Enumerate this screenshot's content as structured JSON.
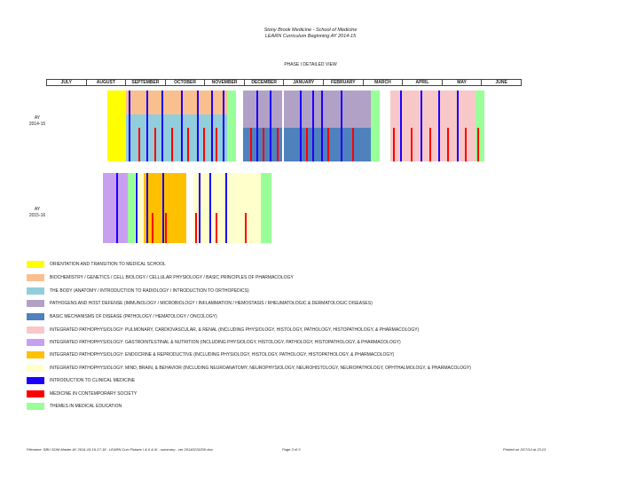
{
  "header": {
    "line1": "Stony Brook Medicine - School of Medicine",
    "line2": "LEARN Curriculum Beginning AY 2014-15",
    "view": "PHASE I DETAILED VIEW"
  },
  "months": [
    "JULY",
    "AUGUST",
    "SEPTEMBER",
    "OCTOBER",
    "NOVEMBER",
    "DECEMBER",
    "JANUARY",
    "FEBRUARY",
    "MARCH",
    "APRIL",
    "MAY",
    "JUNE"
  ],
  "rows": [
    {
      "label_line1": "AY",
      "label_line2": "2014-15"
    },
    {
      "label_line1": "AY",
      "label_line2": "2015-16"
    }
  ],
  "legend": [
    {
      "key": "orientation",
      "color": "#ffff00",
      "label": "ORIENTATION AND TRANSITION TO MEDICAL SCHOOL"
    },
    {
      "key": "biochem",
      "color": "#f9bf8f",
      "label": "BIOCHEMISTRY / GENETICS / CELL BIOLOGY / CELLULAR PHYSIOLOGY / BASIC PRINCIPLES OF PHARMACOLOGY"
    },
    {
      "key": "body",
      "color": "#92cddc",
      "label": "THE BODY (ANATOMY / INTRODUCTION TO RADIOLOGY / INTRODUCTION TO ORTHOPEDICS)"
    },
    {
      "key": "pathogens",
      "color": "#b2a1c7",
      "label": "PATHOGENS AND HOST DEFENSE (IMMUNOLOGY / MICROBIOLOGY / INFLAMMATION / HEMOSTASIS / RHEUMATOLOGIC & DERMATOLOGIC DISEASES)"
    },
    {
      "key": "mechanisms",
      "color": "#4f81bd",
      "label": "BASIC MECHANISMS OF DISEASE (PATHOLOGY / HEMATOLOGY / ONCOLOGY)"
    },
    {
      "key": "pulm",
      "color": "#f8c8c8",
      "label": "INTEGRATED PATHOPHYSIOLOGY: PULMONARY, CARDIOVASCULAR, & RENAL (INCLUDING PHYSIOLOGY, HISTOLOGY, PATHOLOGY, HISTOPATHOLOGY, & PHARMACOLOGY)"
    },
    {
      "key": "gi",
      "color": "#c8a0f0",
      "label": "INTEGRATED PATHOPHYSIOLOGY: GASTROINTESTINAL & NUTRITION (INCLUDING PHYSIOLOGY, HISTOLOGY, PATHOLOGY, HISTOPATHOLOGY, & PHARMACOLOGY)"
    },
    {
      "key": "endo",
      "color": "#ffc000",
      "label": "INTEGRATED PATHOPHYSIOLOGY: ENDOCRINE & REPRODUCTIVE (INCLUDING PHYSIOLOGY, HISTOLOGY, PATHOLOGY, HISTOPATHOLOGY, & PHARMACOLOGY)"
    },
    {
      "key": "mind",
      "color": "#ffffcc",
      "label": "INTEGRATED PATHOPHYSIOLOGY: MIND, BRAIN, & BEHAVIOR (INCLUDING NEUROANATOMY, NEUROPHYSIOLOGY, NEUROHISTOLOGY, NEUROPATHOLOGY, OPHTHALMOLOGY, & PHARMACOLOGY)"
    },
    {
      "key": "clinical",
      "color": "#1a00ff",
      "label": "INTRODUCTION TO CLINICAL MEDICINE"
    },
    {
      "key": "society",
      "color": "#ff0000",
      "label": "MEDICINE IN CONTEMPORARY SOCIETY"
    },
    {
      "key": "themes",
      "color": "#99ff99",
      "label": "THEMES IN MEDICAL EDUCATION"
    }
  ],
  "footer": {
    "filename": "Filename: SBU SOM Master AY 2014-15-16-17-18 - LEARN Curr Phases I & II & III - summary - ver 20140215200.xlsx",
    "page": "Page 3 of 3",
    "printed": "Printed on 3/17/14 at 23:13"
  }
}
